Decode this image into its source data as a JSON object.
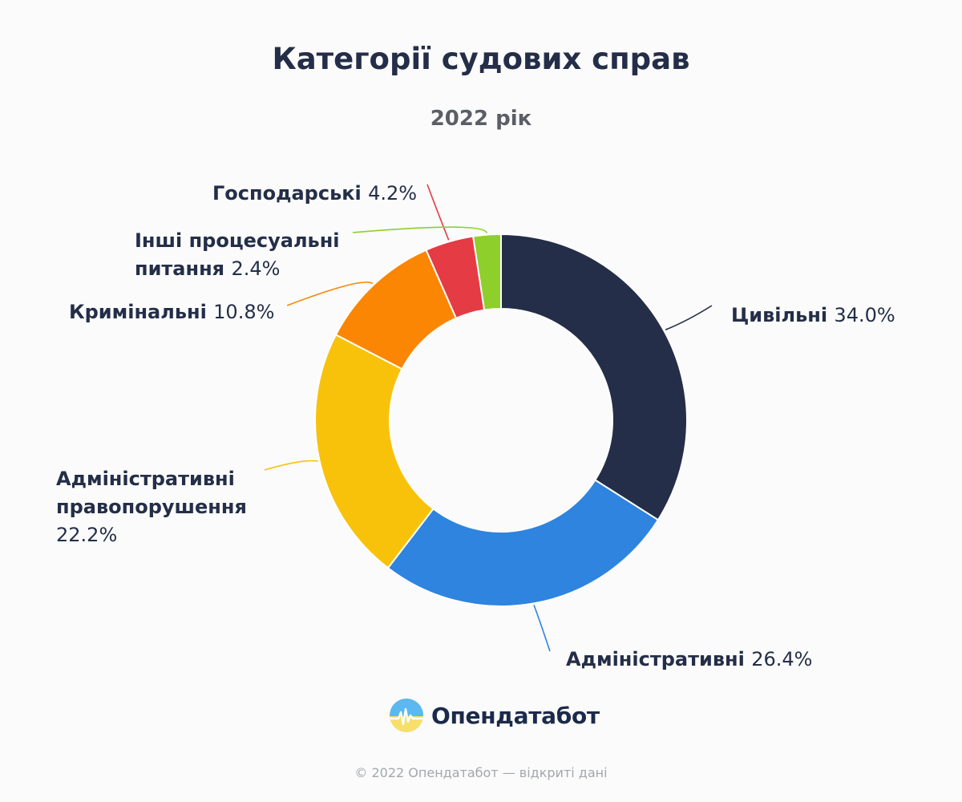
{
  "title": "Категорії судових справ",
  "subtitle": "2022 рік",
  "chart_data": {
    "type": "pie",
    "variant": "donut",
    "title": "Категорії судових справ",
    "subtitle": "2022 рік",
    "value_unit": "%",
    "legend": "none (labels next to slices)",
    "slices": [
      {
        "name": "Цивільні",
        "value": 34.0,
        "value_label": "34.0%",
        "color": "#242e48"
      },
      {
        "name": "Адміністративні",
        "value": 26.4,
        "value_label": "26.4%",
        "color": "#2e84de"
      },
      {
        "name": "Адміністративні правопорушення",
        "value": 22.2,
        "value_label": "22.2%",
        "color": "#f9c20a"
      },
      {
        "name": "Кримінальні",
        "value": 10.8,
        "value_label": "10.8%",
        "color": "#fb8604"
      },
      {
        "name": "Господарські",
        "value": 4.2,
        "value_label": "4.2%",
        "color": "#e53b44"
      },
      {
        "name": "Інші процесуальні питання",
        "value": 2.4,
        "value_label": "2.4%",
        "color": "#8ecf2c"
      }
    ]
  },
  "brand": {
    "name": "Опендатабот",
    "logo_icon": "opendatabot-logo-icon"
  },
  "footer": {
    "text": "© 2022 Опендатабот — відкриті дані"
  }
}
